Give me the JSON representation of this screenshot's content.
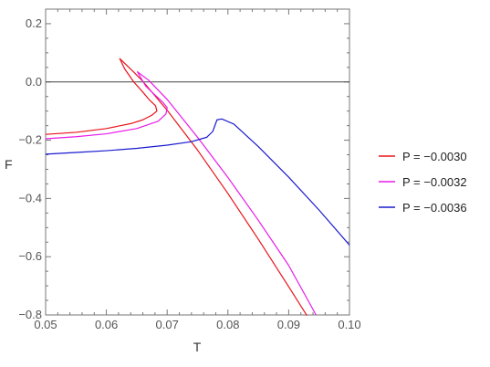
{
  "chart_data": {
    "type": "line",
    "title": "",
    "xlabel": "T",
    "ylabel": "F",
    "xlim": [
      0.05,
      0.1
    ],
    "ylim": [
      -0.8,
      0.25
    ],
    "x_ticks": [
      0.05,
      0.06,
      0.07,
      0.08,
      0.09,
      0.1
    ],
    "x_tick_labels": [
      "0.05",
      "0.06",
      "0.07",
      "0.08",
      "0.09",
      "0.10"
    ],
    "y_ticks": [
      0.2,
      0.0,
      -0.2,
      -0.4,
      -0.6,
      -0.8
    ],
    "y_tick_labels": [
      "0.2",
      "0.0",
      "−0.2",
      "−0.4",
      "−0.6",
      "−0.8"
    ],
    "reference_line_y": 0.0,
    "grid": false,
    "legend_position": "right",
    "series": [
      {
        "name": "P = −0.0030",
        "color": "#e8131b",
        "points": [
          [
            0.05,
            -0.18
          ],
          [
            0.055,
            -0.173
          ],
          [
            0.06,
            -0.16
          ],
          [
            0.064,
            -0.143
          ],
          [
            0.066,
            -0.13
          ],
          [
            0.0675,
            -0.114
          ],
          [
            0.0683,
            -0.1
          ],
          [
            0.0681,
            -0.082
          ],
          [
            0.067,
            -0.06
          ],
          [
            0.066,
            -0.035
          ],
          [
            0.0645,
            0.0
          ],
          [
            0.063,
            0.045
          ],
          [
            0.0622,
            0.08
          ],
          [
            0.0645,
            0.034
          ],
          [
            0.066,
            0.002
          ],
          [
            0.07,
            -0.097
          ],
          [
            0.075,
            -0.234
          ],
          [
            0.08,
            -0.383
          ],
          [
            0.085,
            -0.54
          ],
          [
            0.09,
            -0.703
          ],
          [
            0.093,
            -0.802
          ]
        ]
      },
      {
        "name": "P = −0.0032",
        "color": "#e81be8",
        "points": [
          [
            0.05,
            -0.195
          ],
          [
            0.055,
            -0.188
          ],
          [
            0.06,
            -0.178
          ],
          [
            0.065,
            -0.16
          ],
          [
            0.0685,
            -0.135
          ],
          [
            0.0698,
            -0.11
          ],
          [
            0.07,
            -0.088
          ],
          [
            0.0693,
            -0.07
          ],
          [
            0.068,
            -0.045
          ],
          [
            0.0665,
            -0.015
          ],
          [
            0.0655,
            0.02
          ],
          [
            0.0651,
            0.035
          ],
          [
            0.067,
            0.005
          ],
          [
            0.07,
            -0.06
          ],
          [
            0.075,
            -0.19
          ],
          [
            0.08,
            -0.328
          ],
          [
            0.085,
            -0.475
          ],
          [
            0.09,
            -0.63
          ],
          [
            0.0945,
            -0.8
          ]
        ]
      },
      {
        "name": "P = −0.0036",
        "color": "#1a1ad0",
        "points": [
          [
            0.05,
            -0.248
          ],
          [
            0.055,
            -0.242
          ],
          [
            0.06,
            -0.236
          ],
          [
            0.065,
            -0.228
          ],
          [
            0.07,
            -0.217
          ],
          [
            0.074,
            -0.205
          ],
          [
            0.0765,
            -0.19
          ],
          [
            0.0775,
            -0.17
          ],
          [
            0.0782,
            -0.13
          ],
          [
            0.079,
            -0.127
          ],
          [
            0.081,
            -0.145
          ],
          [
            0.085,
            -0.222
          ],
          [
            0.09,
            -0.327
          ],
          [
            0.095,
            -0.44
          ],
          [
            0.1,
            -0.56
          ]
        ]
      }
    ]
  }
}
